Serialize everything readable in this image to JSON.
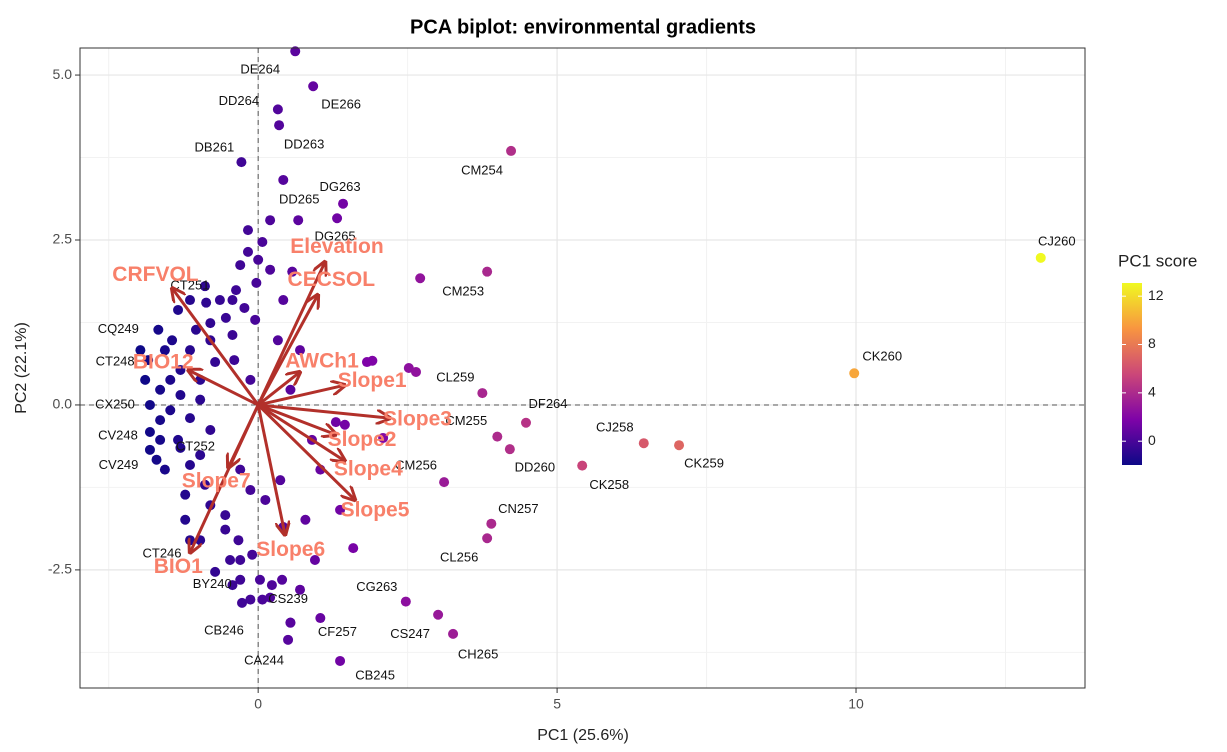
{
  "chart_data": {
    "type": "scatter",
    "title": "PCA biplot: environmental gradients",
    "x_label": "PC1 (25.6%)",
    "y_label": "PC2 (22.1%)",
    "xlim": [
      -2.98,
      13.83
    ],
    "ylim": [
      -4.29,
      5.41
    ],
    "xticks": [
      0,
      5,
      10
    ],
    "yticks": [
      -2.5,
      {
        "value": 0,
        "label": "0.0"
      },
      2.5,
      {
        "value": 5,
        "label": "5.0"
      }
    ],
    "grid": true,
    "x": [
      -0.17,
      0.07,
      -0.17,
      -0.3,
      0.2,
      0.57,
      -0.03,
      -0.37,
      -0.64,
      -0.87,
      -1.14,
      -1.34,
      -0.54,
      -0.23,
      -0.8,
      -1.04,
      -1.44,
      -1.56,
      -1.14,
      -0.8,
      -0.43,
      -1.3,
      -1.47,
      -0.97,
      -0.72,
      -1.64,
      -1.3,
      -0.97,
      -1.47,
      -1.14,
      -1.64,
      -0.8,
      -1.34,
      -0.97,
      -1.56,
      -1.14,
      -0.89,
      -1.22,
      -0.8,
      -0.55,
      -0.13,
      -0.3,
      -0.33,
      -0.1,
      -0.47,
      -0.72,
      -0.43,
      0.03,
      0.23,
      0.4,
      0.07,
      -0.13,
      0.7,
      0.95,
      1.59,
      1.37,
      1.04,
      0.9,
      1.45,
      1.91,
      1.82,
      2.09,
      2.52,
      2.64,
      -0.43,
      -0.05,
      0.33,
      0.7,
      -0.4,
      -0.13,
      0.54,
      0.42,
      0.2,
      0.67,
      0.0,
      -1.81,
      -1.97,
      -1.89,
      -1.64,
      -1.22,
      -0.97,
      0.37,
      -0.55,
      0.12,
      0.79,
      0.42,
      1.3,
      1.04,
      0.54,
      -0.3,
      3.83,
      0.62,
      0.92,
      0.33,
      0.35,
      -0.28,
      4.23,
      0.42,
      1.42,
      1.32,
      13.09,
      2.71,
      9.97,
      3.75,
      4.48,
      4.0,
      6.45,
      7.04,
      4.21,
      5.42,
      3.11,
      3.9,
      3.83,
      2.47,
      3.01,
      3.26,
      1.37,
      0.54,
      0.5,
      -0.27,
      0.2,
      -0.3,
      -1.14,
      -1.7,
      -1.81,
      -1.3,
      -1.81,
      -1.84,
      -1.67,
      -0.89
    ],
    "y": [
      2.65,
      2.47,
      2.32,
      2.12,
      2.05,
      2.02,
      1.85,
      1.74,
      1.59,
      1.55,
      1.59,
      1.44,
      1.32,
      1.47,
      1.24,
      1.14,
      0.98,
      0.83,
      0.83,
      0.98,
      1.06,
      0.53,
      0.38,
      0.38,
      0.65,
      0.23,
      0.15,
      0.08,
      -0.08,
      -0.2,
      -0.23,
      -0.38,
      -0.53,
      -0.76,
      -0.98,
      -0.91,
      -1.21,
      -1.36,
      -1.52,
      -1.67,
      -1.29,
      -0.98,
      -2.05,
      -2.27,
      -2.35,
      -2.53,
      -2.73,
      -2.65,
      -2.73,
      -2.65,
      -2.95,
      -2.95,
      -2.8,
      -2.35,
      -2.17,
      -1.59,
      -0.98,
      -0.53,
      -0.3,
      0.67,
      0.65,
      -0.5,
      0.56,
      0.5,
      1.59,
      1.29,
      0.98,
      0.83,
      0.68,
      0.38,
      0.23,
      1.59,
      2.8,
      2.8,
      2.2,
      -0.68,
      0.83,
      0.38,
      -0.53,
      -1.74,
      -2.05,
      -1.14,
      -1.89,
      -1.44,
      -1.74,
      -1.85,
      -0.26,
      -3.23,
      -3.3,
      -2.35,
      2.02,
      5.36,
      4.83,
      4.48,
      4.24,
      3.68,
      3.85,
      3.41,
      3.05,
      2.83,
      2.23,
      1.92,
      0.48,
      0.18,
      -0.27,
      -0.48,
      -0.58,
      -0.61,
      -0.67,
      -0.92,
      -1.17,
      -1.8,
      -2.02,
      -2.98,
      -3.18,
      -3.47,
      -3.88,
      -3.3,
      -3.56,
      -3.0,
      -2.92,
      -2.65,
      -2.05,
      -0.83,
      -0.41,
      -0.65,
      0.0,
      0.68,
      1.14,
      1.8
    ],
    "labels": [
      null,
      null,
      null,
      null,
      null,
      null,
      null,
      null,
      null,
      null,
      null,
      null,
      null,
      null,
      null,
      null,
      null,
      null,
      null,
      null,
      null,
      null,
      null,
      null,
      null,
      null,
      null,
      null,
      null,
      null,
      null,
      null,
      null,
      null,
      null,
      null,
      null,
      null,
      null,
      null,
      null,
      null,
      null,
      null,
      null,
      null,
      null,
      null,
      null,
      null,
      null,
      null,
      null,
      null,
      null,
      null,
      null,
      null,
      null,
      null,
      null,
      null,
      null,
      null,
      null,
      null,
      null,
      null,
      null,
      null,
      null,
      null,
      null,
      null,
      null,
      null,
      null,
      null,
      null,
      null,
      null,
      null,
      null,
      null,
      null,
      null,
      null,
      null,
      null,
      null,
      null,
      "DE264",
      "DE266",
      "DD264",
      "DD263",
      "DB261",
      "CM254",
      "DD265",
      "DG263",
      "DG265",
      "CJ260",
      "CM253",
      "CK260",
      "CL259",
      "DF264",
      "CM255",
      "CJ258",
      "CK259",
      "DD260",
      "CK258",
      "CM256",
      "CN257",
      "CL256",
      "CG263",
      "CS247",
      "CH265",
      "CB245",
      "CF257",
      "CA244",
      "CB246",
      "CS239",
      "BY240",
      "CT246",
      "CV249",
      "CV248",
      "CT252",
      "CX250",
      "CT248",
      "CQ249",
      "CT251"
    ],
    "colorbar": {
      "title": "PC1 score",
      "ticks": [
        0,
        4,
        8,
        12
      ],
      "colors": [
        "#0d0887",
        "#7e03a8",
        "#cc4778",
        "#f89540",
        "#f0f921"
      ]
    },
    "loadings": {
      "names": [
        "Elevation",
        "CECSOL",
        "CRFVOL",
        "AWCh1",
        "BIO12",
        "Slope1",
        "Slope2",
        "Slope3",
        "Slope4",
        "Slope5",
        "Slope6",
        "Slope7",
        "BIO1"
      ],
      "x": [
        1.12,
        1.0,
        -1.44,
        0.7,
        -1.17,
        1.45,
        1.3,
        2.2,
        1.45,
        1.62,
        0.45,
        -0.5,
        -1.14
      ],
      "y": [
        2.17,
        1.67,
        1.77,
        0.5,
        0.53,
        0.3,
        -0.45,
        -0.2,
        -0.85,
        -1.44,
        -1.97,
        -0.95,
        -2.24
      ],
      "color": "#b2302a",
      "label_color": "#f8806a"
    }
  }
}
